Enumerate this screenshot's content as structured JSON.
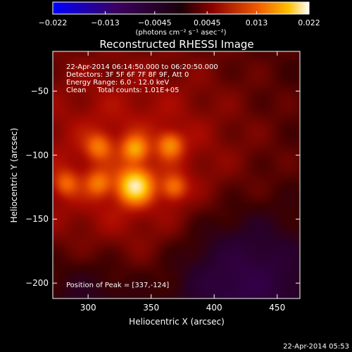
{
  "chart_data": {
    "type": "heatmap",
    "title": "Reconstructed RHESSI Image",
    "xlabel": "Heliocentric X (arcsec)",
    "ylabel": "Heliocentric Y (arcsec)",
    "xlim": [
      272,
      468
    ],
    "ylim": [
      -212,
      -19
    ],
    "x_ticks": [
      300,
      350,
      400,
      450
    ],
    "y_ticks": [
      -50,
      -100,
      -150,
      -200
    ],
    "colorbar": {
      "range": [
        -0.022,
        0.022
      ],
      "tick_values": [
        -0.022,
        -0.013,
        -0.0045,
        0.0045,
        0.013,
        0.022
      ],
      "tick_labels": [
        "−0.022",
        "−0.013",
        "−0.0045",
        "0.0045",
        "0.013",
        "0.022"
      ],
      "units_label": "(photons cm⁻² s⁻¹ asec⁻²)"
    },
    "annotations": [
      "22-Apr-2014 06:14:50.000 to 06:20:50.000",
      "Detectors: 3F 5F 6F 7F 8F 9F, Att 0",
      "Energy Range: 6.0 - 12.0 keV",
      "Clean     Total counts: 1.01E+05"
    ],
    "peak_label": "Position of Peak = [337,-124]",
    "peak": {
      "x": 337,
      "y": -124,
      "value": 0.022
    },
    "sources": [
      {
        "x": 337,
        "y": -124,
        "amplitude": 0.0145,
        "sigma": 9
      },
      {
        "x": 337,
        "y": -95,
        "amplitude": 0.0085,
        "sigma": 7
      },
      {
        "x": 365,
        "y": -92,
        "amplitude": 0.0075,
        "sigma": 7
      },
      {
        "x": 368,
        "y": -125,
        "amplitude": 0.0065,
        "sigma": 7
      },
      {
        "x": 308,
        "y": -93,
        "amplitude": 0.006,
        "sigma": 7
      },
      {
        "x": 308,
        "y": -122,
        "amplitude": 0.006,
        "sigma": 7
      },
      {
        "x": 282,
        "y": -122,
        "amplitude": 0.0055,
        "sigma": 7
      }
    ],
    "grid": false,
    "legend": "none"
  },
  "footer_timestamp": "22-Apr-2014 05:53"
}
